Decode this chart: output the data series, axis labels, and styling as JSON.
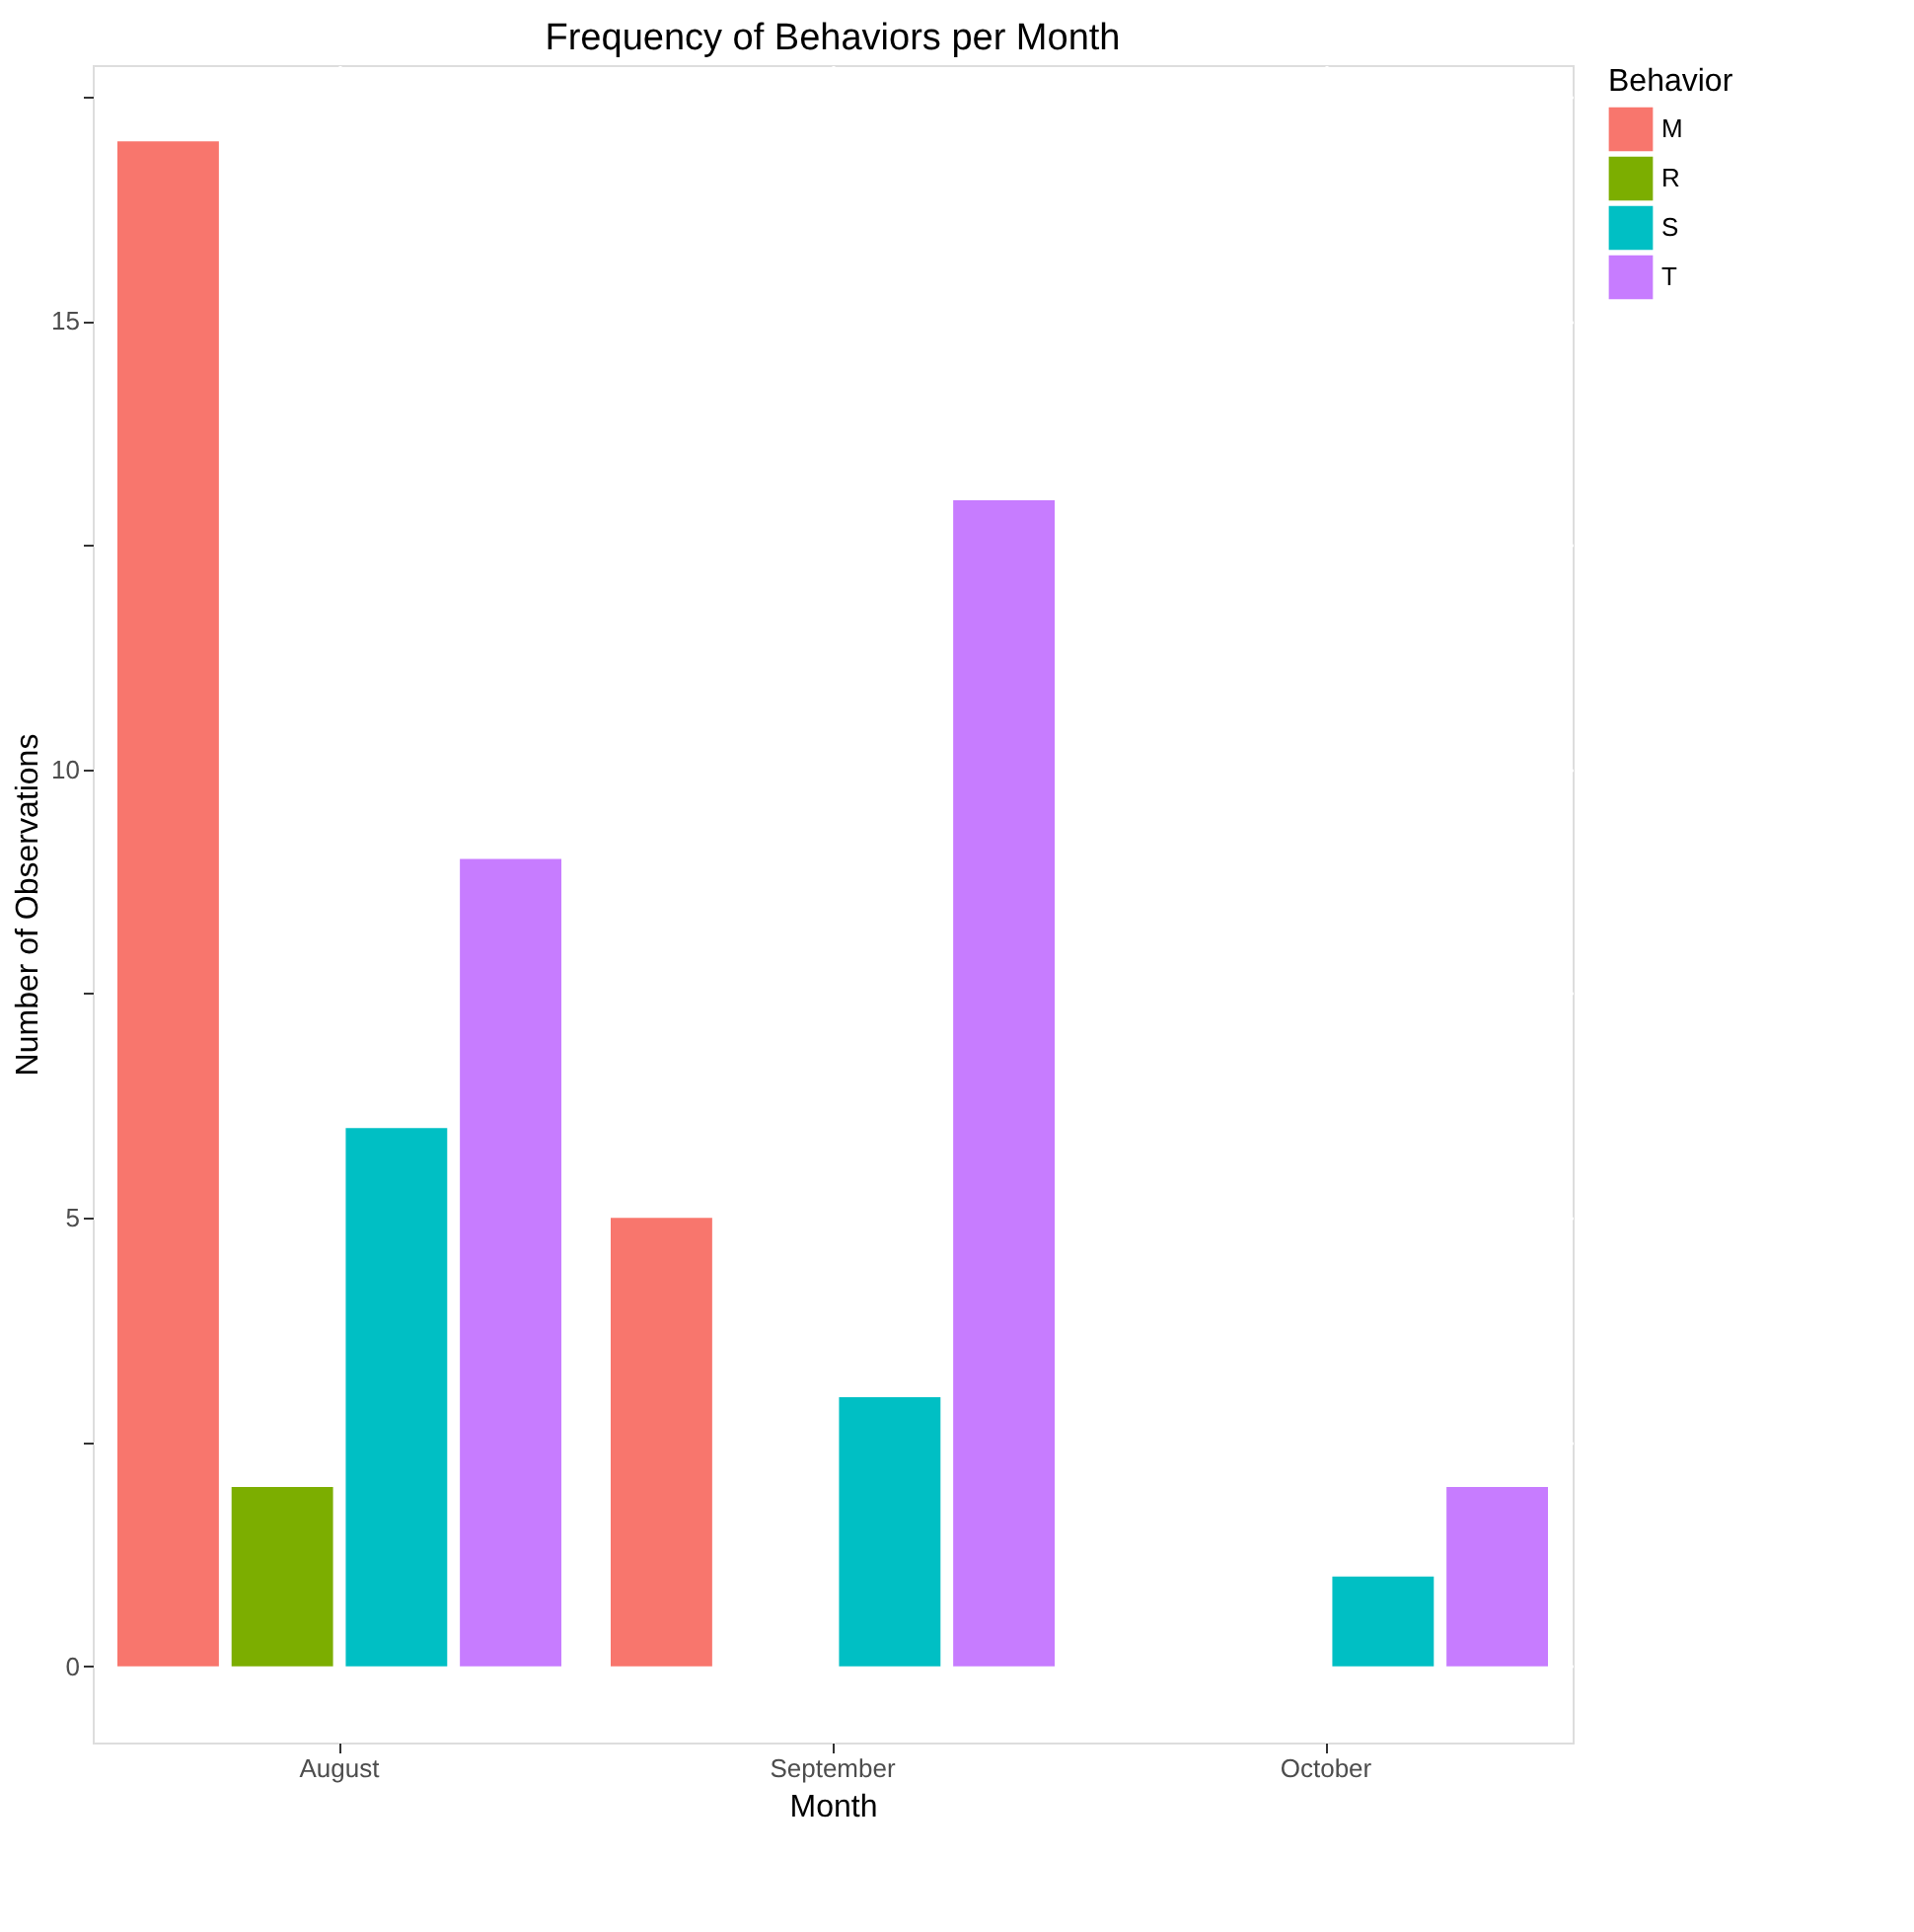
{
  "chart_data": {
    "type": "bar",
    "title": "Frequency of Behaviors per Month",
    "xlabel": "Month",
    "ylabel": "Number of Observations",
    "legend_title": "Behavior",
    "categories": [
      "August",
      "September",
      "October"
    ],
    "series": [
      {
        "name": "M",
        "color": "#f8766d",
        "values": [
          17,
          5,
          null
        ]
      },
      {
        "name": "R",
        "color": "#7cae00",
        "values": [
          2,
          null,
          null
        ]
      },
      {
        "name": "S",
        "color": "#00bfc4",
        "values": [
          6,
          3,
          1
        ]
      },
      {
        "name": "T",
        "color": "#c77cff",
        "values": [
          9,
          13,
          2
        ]
      }
    ],
    "ylim": [
      -0.85,
      17.85
    ],
    "yticks": [
      0,
      {
        "value": 2.5,
        "label": null
      },
      5,
      {
        "value": 7.5,
        "label": null
      },
      10,
      {
        "value": 12.5,
        "label": null
      },
      15,
      {
        "value": 17.5,
        "label": null
      }
    ],
    "grid": true,
    "legend": "right"
  }
}
